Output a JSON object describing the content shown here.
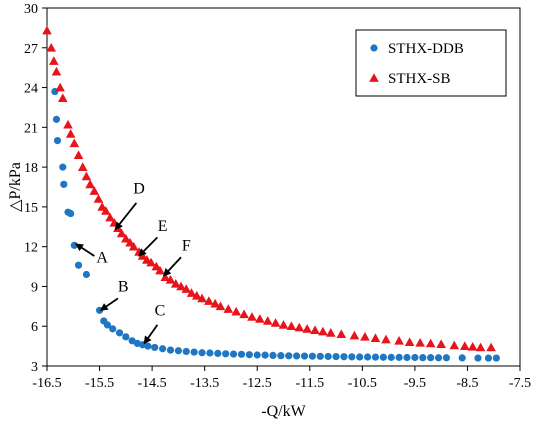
{
  "chart_data": {
    "type": "scatter",
    "xlabel": "-Q/kW",
    "ylabel": "△P/kPa",
    "xlim": [
      -16.5,
      -7.5
    ],
    "ylim": [
      3,
      30
    ],
    "x_ticks": [
      "-16.5",
      "-15.5",
      "-14.5",
      "-13.5",
      "-12.5",
      "-11.5",
      "-10.5",
      "-9.5",
      "-8.5",
      "-7.5"
    ],
    "y_ticks": [
      "3",
      "6",
      "9",
      "12",
      "15",
      "18",
      "21",
      "24",
      "27",
      "30"
    ],
    "x_tick_values": [
      -16.5,
      -15.5,
      -14.5,
      -13.5,
      -12.5,
      -11.5,
      -10.5,
      -9.5,
      -8.5,
      -7.5
    ],
    "y_tick_values": [
      3,
      6,
      9,
      12,
      15,
      18,
      21,
      24,
      27,
      30
    ],
    "grid": false,
    "legend_position": "top-right",
    "series": [
      {
        "name": "STHX-DDB",
        "marker": "circle",
        "color": "#1f77c4",
        "points": [
          [
            -16.35,
            23.7
          ],
          [
            -16.32,
            21.6
          ],
          [
            -16.3,
            20.0
          ],
          [
            -16.2,
            18.0
          ],
          [
            -16.18,
            16.7
          ],
          [
            -16.1,
            14.6
          ],
          [
            -16.05,
            14.5
          ],
          [
            -15.98,
            12.1
          ],
          [
            -15.9,
            10.6
          ],
          [
            -15.75,
            9.9
          ],
          [
            -15.5,
            7.2
          ],
          [
            -15.42,
            6.4
          ],
          [
            -15.35,
            6.1
          ],
          [
            -15.25,
            5.8
          ],
          [
            -15.12,
            5.5
          ],
          [
            -15.0,
            5.2
          ],
          [
            -14.88,
            4.9
          ],
          [
            -14.78,
            4.7
          ],
          [
            -14.68,
            4.6
          ],
          [
            -14.58,
            4.5
          ],
          [
            -14.45,
            4.4
          ],
          [
            -14.3,
            4.3
          ],
          [
            -14.15,
            4.2
          ],
          [
            -14.0,
            4.15
          ],
          [
            -13.85,
            4.1
          ],
          [
            -13.7,
            4.05
          ],
          [
            -13.55,
            4.0
          ],
          [
            -13.4,
            3.98
          ],
          [
            -13.25,
            3.95
          ],
          [
            -13.1,
            3.92
          ],
          [
            -12.95,
            3.9
          ],
          [
            -12.8,
            3.88
          ],
          [
            -12.65,
            3.85
          ],
          [
            -12.5,
            3.83
          ],
          [
            -12.35,
            3.82
          ],
          [
            -12.2,
            3.8
          ],
          [
            -12.05,
            3.78
          ],
          [
            -11.9,
            3.77
          ],
          [
            -11.75,
            3.76
          ],
          [
            -11.6,
            3.75
          ],
          [
            -11.45,
            3.74
          ],
          [
            -11.3,
            3.73
          ],
          [
            -11.15,
            3.72
          ],
          [
            -11.0,
            3.71
          ],
          [
            -10.85,
            3.7
          ],
          [
            -10.7,
            3.69
          ],
          [
            -10.55,
            3.68
          ],
          [
            -10.4,
            3.68
          ],
          [
            -10.25,
            3.67
          ],
          [
            -10.1,
            3.66
          ],
          [
            -9.95,
            3.65
          ],
          [
            -9.8,
            3.65
          ],
          [
            -9.65,
            3.64
          ],
          [
            -9.5,
            3.64
          ],
          [
            -9.35,
            3.63
          ],
          [
            -9.2,
            3.63
          ],
          [
            -9.05,
            3.62
          ],
          [
            -8.9,
            3.62
          ],
          [
            -8.6,
            3.61
          ],
          [
            -8.3,
            3.6
          ],
          [
            -8.1,
            3.6
          ],
          [
            -7.95,
            3.6
          ]
        ]
      },
      {
        "name": "STHX-SB",
        "marker": "triangle",
        "color": "#e8141b",
        "points": [
          [
            -16.5,
            28.3
          ],
          [
            -16.42,
            27.0
          ],
          [
            -16.37,
            26.0
          ],
          [
            -16.32,
            25.2
          ],
          [
            -16.25,
            24.0
          ],
          [
            -16.2,
            23.2
          ],
          [
            -16.1,
            21.2
          ],
          [
            -16.05,
            20.5
          ],
          [
            -15.98,
            19.8
          ],
          [
            -15.9,
            18.9
          ],
          [
            -15.82,
            18.0
          ],
          [
            -15.75,
            17.3
          ],
          [
            -15.68,
            16.7
          ],
          [
            -15.6,
            16.2
          ],
          [
            -15.52,
            15.6
          ],
          [
            -15.45,
            15.0
          ],
          [
            -15.38,
            14.7
          ],
          [
            -15.3,
            14.2
          ],
          [
            -15.22,
            13.8
          ],
          [
            -15.15,
            13.4
          ],
          [
            -15.08,
            13.0
          ],
          [
            -15.0,
            12.6
          ],
          [
            -14.92,
            12.3
          ],
          [
            -14.85,
            12.0
          ],
          [
            -14.75,
            11.6
          ],
          [
            -14.68,
            11.3
          ],
          [
            -14.6,
            11.0
          ],
          [
            -14.52,
            10.8
          ],
          [
            -14.42,
            10.5
          ],
          [
            -14.35,
            10.2
          ],
          [
            -14.25,
            9.7
          ],
          [
            -14.15,
            9.5
          ],
          [
            -14.05,
            9.2
          ],
          [
            -13.95,
            9.0
          ],
          [
            -13.85,
            8.8
          ],
          [
            -13.75,
            8.5
          ],
          [
            -13.65,
            8.3
          ],
          [
            -13.55,
            8.1
          ],
          [
            -13.42,
            7.9
          ],
          [
            -13.3,
            7.7
          ],
          [
            -13.2,
            7.5
          ],
          [
            -13.05,
            7.3
          ],
          [
            -12.9,
            7.1
          ],
          [
            -12.75,
            6.9
          ],
          [
            -12.6,
            6.7
          ],
          [
            -12.45,
            6.55
          ],
          [
            -12.3,
            6.4
          ],
          [
            -12.15,
            6.25
          ],
          [
            -12.0,
            6.1
          ],
          [
            -11.85,
            6.0
          ],
          [
            -11.7,
            5.9
          ],
          [
            -11.55,
            5.8
          ],
          [
            -11.4,
            5.7
          ],
          [
            -11.25,
            5.6
          ],
          [
            -11.1,
            5.5
          ],
          [
            -10.9,
            5.4
          ],
          [
            -10.65,
            5.3
          ],
          [
            -10.45,
            5.2
          ],
          [
            -10.25,
            5.1
          ],
          [
            -10.05,
            5.0
          ],
          [
            -9.8,
            4.9
          ],
          [
            -9.6,
            4.8
          ],
          [
            -9.4,
            4.75
          ],
          [
            -9.2,
            4.7
          ],
          [
            -9.0,
            4.65
          ],
          [
            -8.75,
            4.55
          ],
          [
            -8.55,
            4.5
          ],
          [
            -8.4,
            4.45
          ],
          [
            -8.25,
            4.4
          ],
          [
            -8.05,
            4.4
          ]
        ]
      }
    ],
    "annotations": [
      {
        "label": "A",
        "text_at": [
          -15.45,
          10.8
        ],
        "arrow_from": [
          -15.6,
          11.3
        ],
        "arrow_to": [
          -15.95,
          12.2
        ]
      },
      {
        "label": "B",
        "text_at": [
          -15.05,
          8.6
        ],
        "arrow_from": [
          -15.15,
          8.1
        ],
        "arrow_to": [
          -15.48,
          7.2
        ]
      },
      {
        "label": "C",
        "text_at": [
          -14.35,
          6.8
        ],
        "arrow_from": [
          -14.4,
          6.1
        ],
        "arrow_to": [
          -14.65,
          4.7
        ]
      },
      {
        "label": "D",
        "text_at": [
          -14.75,
          16.0
        ],
        "arrow_from": [
          -14.8,
          15.3
        ],
        "arrow_to": [
          -15.2,
          13.3
        ]
      },
      {
        "label": "E",
        "text_at": [
          -14.3,
          13.2
        ],
        "arrow_from": [
          -14.4,
          12.7
        ],
        "arrow_to": [
          -14.75,
          11.3
        ]
      },
      {
        "label": "F",
        "text_at": [
          -13.85,
          11.7
        ],
        "arrow_from": [
          -13.95,
          11.2
        ],
        "arrow_to": [
          -14.28,
          9.8
        ]
      }
    ]
  }
}
